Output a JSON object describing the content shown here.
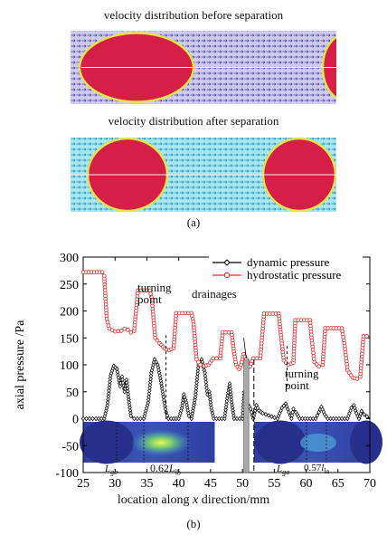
{
  "panel_a": {
    "title_before": "velocity distribution before separation",
    "title_after": "velocity distribution after separation",
    "label": "(a)",
    "colors": {
      "bubble_fill": "#d61f46",
      "bubble_rim": "#e8e84a",
      "field_before": "#b9b4e6",
      "field_after": "#6fd0e4"
    }
  },
  "panel_b": {
    "label": "(b)",
    "annotations": {
      "turning_point_1": [
        "turning",
        "point"
      ],
      "drainages": "drainages",
      "turning_point_2": [
        "turning",
        "point"
      ],
      "L_gb": "L",
      "L_gb_sub": "gb",
      "L_lb_prefix": "0.62",
      "L_lb": "L",
      "L_lb_sub": "lb",
      "L_ga": "L",
      "L_ga_sub": "ga",
      "L_la_prefix": "0.57",
      "L_la": "l",
      "L_la_sub": "la"
    }
  },
  "chart_data": {
    "type": "line",
    "xlabel_parts": [
      "location along ",
      "x",
      " direction/mm"
    ],
    "ylabel": "axial pressure /Pa",
    "xlim": [
      25,
      70
    ],
    "ylim": [
      -100,
      300
    ],
    "xticks": [
      25,
      30,
      35,
      40,
      45,
      50,
      55,
      60,
      65,
      70
    ],
    "yticks": [
      -100,
      -50,
      0,
      50,
      100,
      150,
      200,
      250,
      300
    ],
    "legend_position": "top-right",
    "series": [
      {
        "name": "dynamic pressure",
        "color": "#000000",
        "marker": "diamond",
        "points": [
          [
            25,
            0
          ],
          [
            27,
            0
          ],
          [
            28.3,
            0
          ],
          [
            28.8,
            25
          ],
          [
            29.3,
            80
          ],
          [
            29.8,
            98
          ],
          [
            30.3,
            92
          ],
          [
            30.8,
            60
          ],
          [
            31.1,
            78
          ],
          [
            31.5,
            50
          ],
          [
            31.8,
            72
          ],
          [
            32.1,
            40
          ],
          [
            32.5,
            5
          ],
          [
            33,
            0
          ],
          [
            34.5,
            0
          ],
          [
            35.2,
            30
          ],
          [
            35.7,
            85
          ],
          [
            36.2,
            110
          ],
          [
            36.7,
            100
          ],
          [
            37.2,
            70
          ],
          [
            37.6,
            40
          ],
          [
            38,
            12
          ],
          [
            38.4,
            0
          ],
          [
            40,
            0
          ],
          [
            40.5,
            20
          ],
          [
            40.8,
            45
          ],
          [
            41.2,
            30
          ],
          [
            41.6,
            5
          ],
          [
            42,
            0
          ],
          [
            42.6,
            40
          ],
          [
            43.1,
            100
          ],
          [
            43.6,
            110
          ],
          [
            44.1,
            85
          ],
          [
            44.5,
            45
          ],
          [
            44.8,
            50
          ],
          [
            45.1,
            20
          ],
          [
            45.5,
            0
          ],
          [
            47.2,
            0
          ],
          [
            47.6,
            38
          ],
          [
            48,
            65
          ],
          [
            48.3,
            30
          ],
          [
            48.7,
            0
          ],
          [
            50,
            0
          ],
          [
            50.3,
            50
          ],
          [
            50.7,
            30
          ],
          [
            51.3,
            18
          ],
          [
            51.7,
            0
          ],
          [
            52.2,
            25
          ],
          [
            52.6,
            15
          ],
          [
            53.2,
            10
          ],
          [
            55.5,
            0
          ],
          [
            56.2,
            20
          ],
          [
            56.8,
            28
          ],
          [
            57.3,
            12
          ],
          [
            57.7,
            0
          ],
          [
            58,
            18
          ],
          [
            58.4,
            12
          ],
          [
            59,
            0
          ],
          [
            61.5,
            0
          ],
          [
            62,
            12
          ],
          [
            62.4,
            22
          ],
          [
            62.9,
            8
          ],
          [
            63.4,
            0
          ],
          [
            66.5,
            0
          ],
          [
            67.1,
            20
          ],
          [
            67.5,
            25
          ],
          [
            67.9,
            10
          ],
          [
            68.3,
            0
          ],
          [
            68.7,
            14
          ],
          [
            69.1,
            8
          ],
          [
            70,
            0
          ]
        ]
      },
      {
        "name": "hydrostatic pressure",
        "color": "#e0282c",
        "marker": "circle",
        "points": [
          [
            25,
            272
          ],
          [
            28,
            272
          ],
          [
            28.3,
            265
          ],
          [
            28.7,
            185
          ],
          [
            29.1,
            167
          ],
          [
            30,
            162
          ],
          [
            31,
            163
          ],
          [
            31.5,
            167
          ],
          [
            32,
            165
          ],
          [
            32.5,
            160
          ],
          [
            33,
            163
          ],
          [
            33.6,
            238
          ],
          [
            35.5,
            238
          ],
          [
            35.8,
            220
          ],
          [
            36.3,
            150
          ],
          [
            37,
            140
          ],
          [
            37.8,
            130
          ],
          [
            38.5,
            127
          ],
          [
            39.2,
            131
          ],
          [
            39.6,
            196
          ],
          [
            42,
            196
          ],
          [
            42.3,
            180
          ],
          [
            42.8,
            110
          ],
          [
            43.4,
            100
          ],
          [
            44,
            98
          ],
          [
            44.7,
            100
          ],
          [
            45.4,
            112
          ],
          [
            46.5,
            112
          ],
          [
            46.9,
            160
          ],
          [
            48.3,
            160
          ],
          [
            48.6,
            130
          ],
          [
            49,
            100
          ],
          [
            49.5,
            92
          ],
          [
            49.8,
            100
          ],
          [
            50.2,
            120
          ],
          [
            51.2,
            97
          ],
          [
            51.7,
            112
          ],
          [
            52.8,
            112
          ],
          [
            53.4,
            195
          ],
          [
            55.7,
            195
          ],
          [
            56,
            160
          ],
          [
            56.5,
            108
          ],
          [
            57.2,
            100
          ],
          [
            58,
            104
          ],
          [
            58.3,
            183
          ],
          [
            60.6,
            183
          ],
          [
            60.9,
            145
          ],
          [
            61.3,
            105
          ],
          [
            62,
            97
          ],
          [
            62.6,
            100
          ],
          [
            63,
            168
          ],
          [
            65.6,
            168
          ],
          [
            66,
            140
          ],
          [
            66.5,
            90
          ],
          [
            67.3,
            76
          ],
          [
            68,
            74
          ],
          [
            68.5,
            78
          ],
          [
            69,
            153
          ],
          [
            70,
            153
          ]
        ]
      }
    ]
  }
}
